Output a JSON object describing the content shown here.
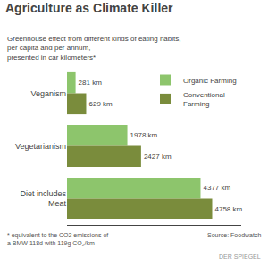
{
  "chart_data": {
    "type": "bar",
    "orientation": "horizontal",
    "title": "Agriculture as Climate Killer",
    "subtitle": "Greenhouse effect from different kinds of eating habits,\nper capita and per annum,\npresented in car kilometers*",
    "categories": [
      "Veganism",
      "Vegetarianism",
      "Diet includes\nMeat"
    ],
    "series": [
      {
        "name": "Organic Farming",
        "color": "#8dc56c",
        "values": [
          281,
          1978,
          4377
        ],
        "value_labels": [
          "281 km",
          "1978 km",
          "4377 km"
        ]
      },
      {
        "name": "Conventional\nFarming",
        "color": "#7a8c3c",
        "values": [
          629,
          2427,
          4758
        ],
        "value_labels": [
          "629 km",
          "2427 km",
          "4758 km"
        ]
      }
    ],
    "xlim": [
      0,
      5709.6
    ],
    "xticks": [],
    "tick_labels": "y",
    "data_labels": true,
    "grid": false,
    "legend": "upper right",
    "annotations": [
      "* equivalent to the CO2 emissions of\na BMW 118d with 119g CO₂/km",
      "Source: Foodwatch",
      "DER SPIEGEL"
    ]
  }
}
